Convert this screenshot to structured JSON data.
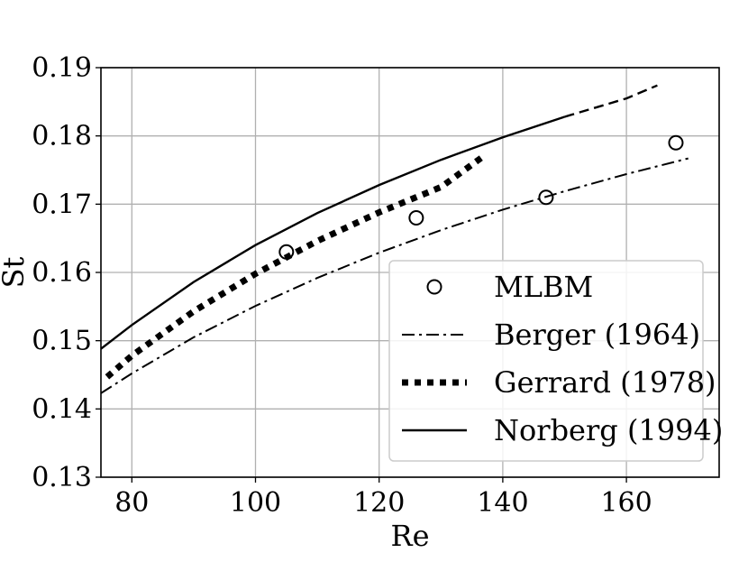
{
  "chart_data": {
    "type": "line",
    "title": "",
    "xlabel": "Re",
    "ylabel": "St",
    "xlim": [
      75,
      175
    ],
    "ylim": [
      0.13,
      0.19
    ],
    "xticks": [
      80,
      100,
      120,
      140,
      160
    ],
    "xtick_labels": [
      "80",
      "100",
      "120",
      "140",
      "160"
    ],
    "yticks": [
      0.13,
      0.14,
      0.15,
      0.16,
      0.17,
      0.18,
      0.19
    ],
    "ytick_labels": [
      "0.13",
      "0.14",
      "0.15",
      "0.16",
      "0.17",
      "0.18",
      "0.19"
    ],
    "grid": true,
    "legend_position": "lower-right",
    "series": [
      {
        "name": "MLBM",
        "style": "markers-open-circle",
        "x": [
          105,
          126,
          147,
          168
        ],
        "y": [
          0.163,
          0.168,
          0.171,
          0.179
        ]
      },
      {
        "name": "Berger (1964)",
        "style": "dash-dot",
        "x": [
          75,
          80,
          90,
          100,
          110,
          120,
          130,
          140,
          150,
          160,
          170
        ],
        "y": [
          0.1423,
          0.1452,
          0.1505,
          0.1551,
          0.1592,
          0.1629,
          0.1662,
          0.1692,
          0.1719,
          0.1744,
          0.1767
        ]
      },
      {
        "name": "Gerrard (1978)",
        "style": "dotted-thick",
        "x": [
          76,
          80,
          90,
          100,
          110,
          120,
          130,
          137
        ],
        "y": [
          0.1447,
          0.1478,
          0.1543,
          0.1598,
          0.1646,
          0.1688,
          0.1725,
          0.1771
        ]
      },
      {
        "name": "Norberg (1994)",
        "style": "solid",
        "dashed_extension_from_x": 150,
        "x": [
          75,
          80,
          90,
          100,
          110,
          120,
          130,
          140,
          150,
          160,
          165
        ],
        "y": [
          0.1488,
          0.1523,
          0.1586,
          0.164,
          0.1687,
          0.1728,
          0.1765,
          0.1798,
          0.1828,
          0.1855,
          0.1874
        ]
      }
    ],
    "colors": {
      "line": "#000000",
      "grid": "#b0b0b0",
      "legend_border": "#cccccc"
    }
  }
}
